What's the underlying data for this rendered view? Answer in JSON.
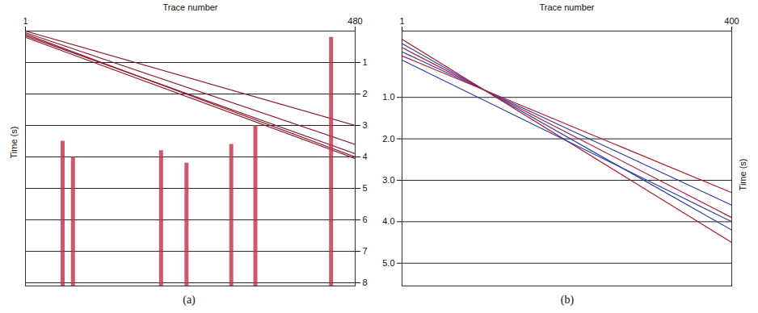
{
  "chart_data": [
    {
      "type": "line",
      "caption": "(a)",
      "xlabel": "Trace number",
      "ylabel": "Time (s)",
      "x": [
        1,
        480
      ],
      "xlim": [
        1,
        480
      ],
      "xticks": [
        1,
        480
      ],
      "ylim": [
        0,
        8.1
      ],
      "yticks": [
        1,
        2,
        3,
        4,
        5,
        6,
        7,
        8
      ],
      "grid": true,
      "series": [
        {
          "color": "#8b1a2b",
          "values": [
            0.1,
            4.0
          ]
        },
        {
          "color": "#8b1a2b",
          "values": [
            0.15,
            3.9
          ]
        },
        {
          "color": "#8b1a2b",
          "values": [
            0.05,
            3.6
          ]
        },
        {
          "color": "#8b1a2b",
          "values": [
            0.0,
            3.0
          ]
        },
        {
          "color": "#8b1a2b",
          "values": [
            0.2,
            4.05
          ]
        },
        {
          "type": "rule",
          "color": "#c2304a",
          "x": [
            55,
            70,
            198,
            235,
            300,
            335,
            445
          ],
          "values": [
            [
              3.5,
              8.1
            ],
            [
              4.0,
              8.1
            ],
            [
              3.8,
              8.1
            ],
            [
              4.2,
              8.1
            ],
            [
              3.6,
              8.1
            ],
            [
              3.0,
              8.1
            ],
            [
              0.2,
              8.1
            ]
          ]
        }
      ]
    },
    {
      "type": "line",
      "caption": "(b)",
      "xlabel": "Trace number",
      "ylabel": "Time (s)",
      "x": [
        1,
        400
      ],
      "xlim": [
        1,
        400
      ],
      "xticks": [
        1,
        400
      ],
      "ylim": [
        -0.6,
        5.55
      ],
      "yticks": [
        1,
        2,
        3,
        4,
        5
      ],
      "grid": true,
      "series": [
        {
          "color": "#b0203a",
          "values": [
            -0.4,
            4.5
          ]
        },
        {
          "color": "#2a3fa0",
          "values": [
            -0.3,
            4.2
          ]
        },
        {
          "color": "#b0203a",
          "values": [
            -0.2,
            3.9
          ]
        },
        {
          "color": "#2a3fa0",
          "values": [
            -0.1,
            3.6
          ]
        },
        {
          "color": "#b0203a",
          "values": [
            0.0,
            3.3
          ]
        },
        {
          "color": "#2a3fa0",
          "values": [
            0.1,
            4.0
          ]
        }
      ]
    }
  ]
}
